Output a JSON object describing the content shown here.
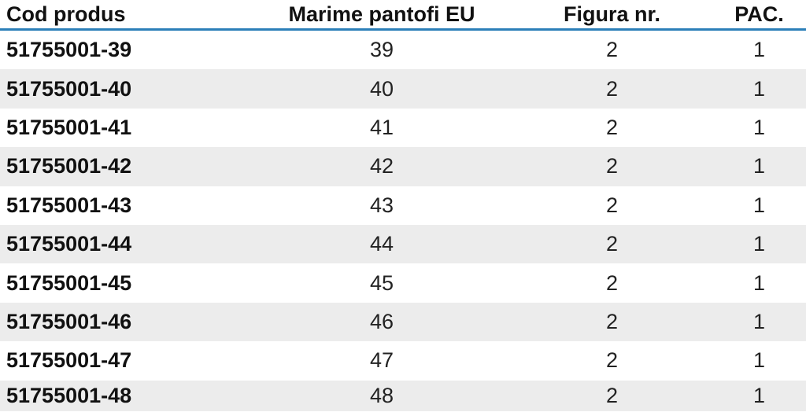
{
  "table": {
    "headers": [
      "Cod produs",
      "Marime pantofi EU",
      "Figura nr.",
      "PAC."
    ],
    "rows": [
      [
        "51755001-39",
        "39",
        "2",
        "1"
      ],
      [
        "51755001-40",
        "40",
        "2",
        "1"
      ],
      [
        "51755001-41",
        "41",
        "2",
        "1"
      ],
      [
        "51755001-42",
        "42",
        "2",
        "1"
      ],
      [
        "51755001-43",
        "43",
        "2",
        "1"
      ],
      [
        "51755001-44",
        "44",
        "2",
        "1"
      ],
      [
        "51755001-45",
        "45",
        "2",
        "1"
      ],
      [
        "51755001-46",
        "46",
        "2",
        "1"
      ],
      [
        "51755001-47",
        "47",
        "2",
        "1"
      ],
      [
        "51755001-48",
        "48",
        "2",
        "1"
      ]
    ]
  },
  "colors": {
    "header_rule": "#2b7fb8",
    "row_shade": "#ececec"
  }
}
